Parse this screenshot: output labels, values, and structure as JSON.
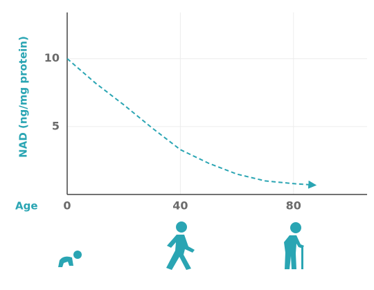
{
  "chart_data": {
    "type": "line",
    "ylabel": "NAD (ng/mg protein)",
    "xlabel": "Age",
    "x": [
      0,
      10,
      20,
      30,
      40,
      50,
      60,
      70,
      80,
      87
    ],
    "values": [
      10,
      8.2,
      6.6,
      4.9,
      3.3,
      2.3,
      1.5,
      1.0,
      0.8,
      0.7
    ],
    "color": "#2aa5b3",
    "line_style": "dashed",
    "end_arrow": true,
    "xlim": [
      0,
      106
    ],
    "xticks": [
      0,
      40,
      80
    ],
    "ylim": [
      0,
      13.4
    ],
    "yticks": [
      5,
      10
    ],
    "grid": true
  }
}
